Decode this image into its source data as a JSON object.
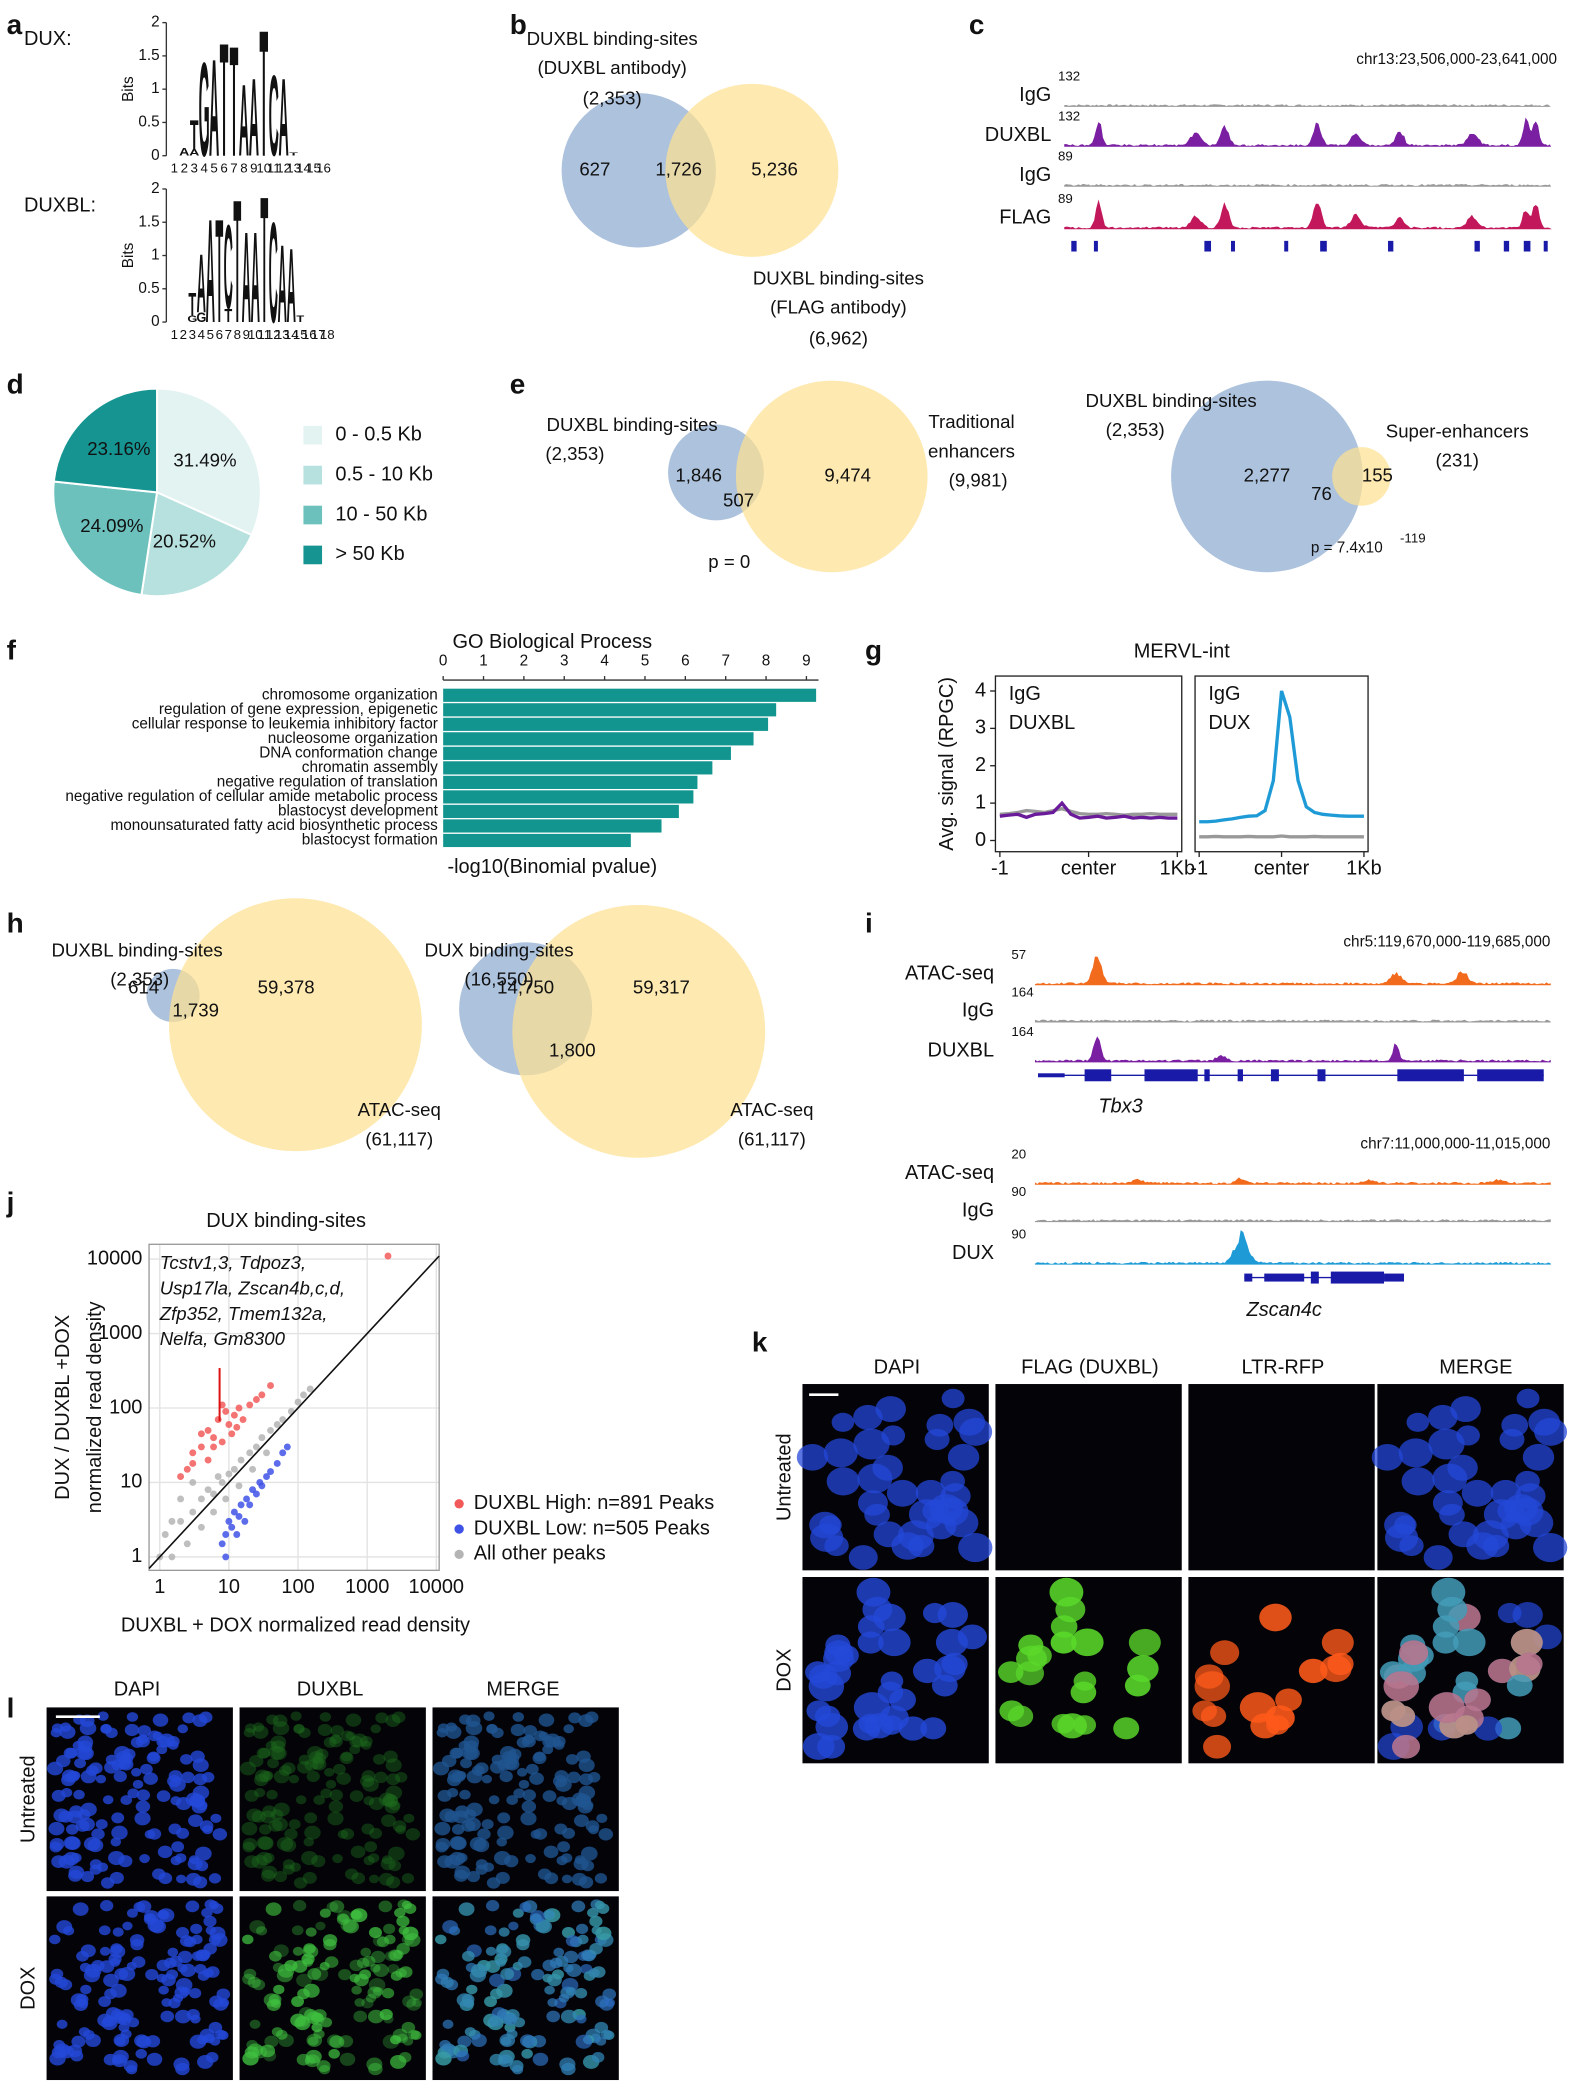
{
  "panels": {
    "a": {
      "label": "a",
      "y_label": "Bits",
      "ylim": [
        0,
        2
      ],
      "yticks": [
        0,
        0.5,
        1,
        1.5,
        2
      ],
      "letter_colors": {
        "A": "#1fa64a",
        "C": "#1f3fbf",
        "G": "#f2a81d",
        "T": "#d6283a"
      },
      "motifs": [
        {
          "name": "DUX:",
          "positions": [
            1,
            2,
            3,
            4,
            5,
            6,
            7,
            8,
            9,
            10,
            11,
            12,
            13,
            14,
            15,
            16
          ],
          "letters": [
            {
              "pos": 2,
              "letter": "A",
              "bits": 0.12
            },
            {
              "pos": 3,
              "letter": "A",
              "bits": 0.1
            },
            {
              "pos": 3,
              "letter": "T",
              "bits": 0.45
            },
            {
              "pos": 4,
              "letter": "G",
              "bits": 1.45
            },
            {
              "pos": 5,
              "letter": "A",
              "bits": 1.5
            },
            {
              "pos": 6,
              "letter": "T",
              "bits": 1.75
            },
            {
              "pos": 7,
              "letter": "T",
              "bits": 1.7
            },
            {
              "pos": 8,
              "letter": "A",
              "bits": 1.1
            },
            {
              "pos": 9,
              "letter": "A",
              "bits": 1.2
            },
            {
              "pos": 10,
              "letter": "T",
              "bits": 1.95
            },
            {
              "pos": 11,
              "letter": "C",
              "bits": 1.25
            },
            {
              "pos": 12,
              "letter": "A",
              "bits": 1.2
            },
            {
              "pos": 13,
              "letter": "T",
              "bits": 0.05
            }
          ]
        },
        {
          "name": "DUXBL:",
          "positions": [
            1,
            2,
            3,
            4,
            5,
            6,
            7,
            8,
            9,
            10,
            11,
            12,
            13,
            14,
            15,
            16,
            17,
            18
          ],
          "letters": [
            {
              "pos": 3,
              "letter": "G",
              "bits": 0.1
            },
            {
              "pos": 3,
              "letter": "T",
              "bits": 0.35
            },
            {
              "pos": 4,
              "letter": "G",
              "bits": 0.15
            },
            {
              "pos": 4,
              "letter": "A",
              "bits": 0.9
            },
            {
              "pos": 5,
              "letter": "A",
              "bits": 1.6
            },
            {
              "pos": 6,
              "letter": "T",
              "bits": 1.6
            },
            {
              "pos": 7,
              "letter": "T",
              "bits": 0.2
            },
            {
              "pos": 7,
              "letter": "C",
              "bits": 1.3
            },
            {
              "pos": 8,
              "letter": "T",
              "bits": 1.9
            },
            {
              "pos": 9,
              "letter": "A",
              "bits": 1.4
            },
            {
              "pos": 10,
              "letter": "A",
              "bits": 1.4
            },
            {
              "pos": 11,
              "letter": "T",
              "bits": 1.95
            },
            {
              "pos": 12,
              "letter": "C",
              "bits": 1.55
            },
            {
              "pos": 13,
              "letter": "A",
              "bits": 1.2
            },
            {
              "pos": 14,
              "letter": "A",
              "bits": 1.15
            },
            {
              "pos": 15,
              "letter": "T",
              "bits": 0.1
            }
          ]
        }
      ]
    },
    "b": {
      "label": "b",
      "left_title": [
        "DUXBL binding-sites",
        "(DUXBL antibody)"
      ],
      "left_count": "(2,353)",
      "right_title": [
        "DUXBL binding-sites",
        "(FLAG antibody)"
      ],
      "right_count": "(6,962)",
      "only_left": "627",
      "both": "1,726",
      "only_right": "5,236"
    },
    "c": {
      "label": "c",
      "region": "chr13:23,506,000-23,641,000",
      "tracks": [
        {
          "name": "IgG",
          "max": "132",
          "color": "#9a9a9a"
        },
        {
          "name": "DUXBL",
          "max": "132",
          "color": "#7a1fa2"
        },
        {
          "name": "IgG",
          "max": "89",
          "color": "#9a9a9a"
        },
        {
          "name": "FLAG",
          "max": "89",
          "color": "#c2185b"
        }
      ]
    },
    "e": {
      "label": "e",
      "venns": [
        {
          "left_title": "DUXBL binding-sites",
          "left_count": "(2,353)",
          "right_title": [
            "Traditional",
            "enhancers"
          ],
          "right_count": "(9,981)",
          "only_left": "1,846",
          "both": "507",
          "only_right": "9,474",
          "p": "p = 0"
        },
        {
          "left_title": "DUXBL binding-sites",
          "left_count": "(2,353)",
          "right_title": [
            "Super-enhancers"
          ],
          "right_count": "(231)",
          "only_left": "2,277",
          "both": "76",
          "only_right": "155",
          "p": "p = 7.4x10",
          "p_exponent": "-119"
        }
      ]
    },
    "h": {
      "label": "h",
      "venns": [
        {
          "left_title": "DUXBL binding-sites",
          "left_count": "(2,353)",
          "right_title": "ATAC-seq",
          "right_count": "(61,117)",
          "only_left": "614",
          "both": "1,739",
          "only_right": "59,378"
        },
        {
          "left_title": "DUX binding-sites",
          "left_count": "(16,550)",
          "right_title": "ATAC-seq",
          "right_count": "(61,117)",
          "only_left": "14,750",
          "both": "1,800",
          "only_right": "59,317"
        }
      ]
    },
    "i": {
      "label": "i",
      "regions": [
        {
          "region": "chr5:119,670,000-119,685,000",
          "tracks": [
            {
              "name": "ATAC-seq",
              "max": "57",
              "color": "#f26b1d"
            },
            {
              "name": "IgG",
              "max": "164",
              "color": "#9a9a9a"
            },
            {
              "name": "DUXBL",
              "max": "164",
              "color": "#7a1fa2"
            }
          ],
          "gene": "Tbx3"
        },
        {
          "region": "chr7:11,000,000-11,015,000",
          "tracks": [
            {
              "name": "ATAC-seq",
              "max": "20",
              "color": "#f26b1d"
            },
            {
              "name": "IgG",
              "max": "90",
              "color": "#9a9a9a"
            },
            {
              "name": "DUX",
              "max": "90",
              "color": "#1e9bd7"
            }
          ],
          "gene": "Zscan4c"
        }
      ]
    },
    "k": {
      "label": "k",
      "columns": [
        {
          "name": "DAPI",
          "color": "#2b2bd0"
        },
        {
          "name": "FLAG (DUXBL)",
          "color": "#22a022"
        },
        {
          "name": "LTR-RFP",
          "color": "#d62020"
        },
        {
          "name": "MERGE",
          "color": "#111111"
        }
      ],
      "rows": [
        "Untreated",
        "DOX"
      ]
    },
    "l": {
      "label": "l",
      "columns": [
        {
          "name": "DAPI",
          "color": "#2b2bd0"
        },
        {
          "name": "DUXBL",
          "color": "#22a022"
        },
        {
          "name": "MERGE",
          "color": "#111111"
        }
      ],
      "rows": [
        "Untreated",
        "DOX"
      ]
    }
  },
  "chart_data": [
    {
      "type": "pie",
      "label": "d",
      "categories": [
        "0 - 0.5 Kb",
        "0.5 - 10 Kb",
        "10 - 50 Kb",
        "> 50 Kb"
      ],
      "values": [
        31.49,
        20.52,
        24.09,
        23.16
      ],
      "value_labels": [
        "31.49%",
        "20.52%",
        "24.09%",
        "23.16%"
      ],
      "colors": [
        "#e3f3f2",
        "#b6e1de",
        "#6cc1bd",
        "#169491"
      ]
    },
    {
      "type": "bar",
      "orientation": "horizontal",
      "label": "f",
      "title": "GO Biological Process",
      "xlabel": "-log10(Binomial pvalue)",
      "xaxis_position": "top",
      "categories": [
        "chromosome organization",
        "regulation of gene expression, epigenetic",
        "cellular response to leukemia inhibitory factor",
        "nucleosome organization",
        "DNA conformation change",
        "chromatin assembly",
        "negative regulation of translation",
        "negative regulation of cellular amide metabolic process",
        "blastocyst development",
        "monounsaturated fatty acid biosynthetic process",
        "blastocyst formation"
      ],
      "values": [
        9.24,
        8.25,
        8.05,
        7.69,
        7.13,
        6.67,
        6.3,
        6.2,
        5.84,
        5.41,
        4.65
      ],
      "color": "#13958f",
      "xlim": [
        0,
        9.3
      ],
      "xticks": [
        0,
        1,
        2,
        3,
        4,
        5,
        6,
        7,
        8,
        9
      ]
    },
    {
      "type": "line",
      "label": "g",
      "title": "MERVL-int",
      "ylabel": "Avg. signal (RPGC)",
      "x": [
        -1,
        -0.9,
        -0.8,
        -0.7,
        -0.6,
        -0.5,
        -0.4,
        -0.3,
        -0.2,
        -0.1,
        0,
        0.1,
        0.2,
        0.3,
        0.4,
        0.5,
        0.6,
        0.7,
        0.8,
        0.9,
        1
      ],
      "xlim": [
        -1.05,
        1.05
      ],
      "xticks": [
        {
          "value": -1,
          "label": "-1"
        },
        {
          "value": 0,
          "label": "center"
        },
        {
          "value": 1,
          "label": "1Kb"
        }
      ],
      "ylim": [
        -0.3,
        4.4
      ],
      "yticks": [
        0,
        1,
        2,
        3,
        4
      ],
      "subplots": [
        {
          "series": [
            {
              "name": "IgG",
              "color": "#999999",
              "values": [
                0.7,
                0.72,
                0.75,
                0.8,
                0.78,
                0.75,
                0.8,
                0.85,
                0.78,
                0.72,
                0.7,
                0.7,
                0.72,
                0.7,
                0.68,
                0.7,
                0.7,
                0.72,
                0.7,
                0.7,
                0.7
              ]
            },
            {
              "name": "DUXBL",
              "color": "#6a1b9a",
              "values": [
                0.65,
                0.68,
                0.7,
                0.62,
                0.7,
                0.72,
                0.75,
                1.0,
                0.7,
                0.6,
                0.62,
                0.65,
                0.6,
                0.62,
                0.65,
                0.6,
                0.62,
                0.6,
                0.62,
                0.6,
                0.6
              ]
            }
          ]
        },
        {
          "series": [
            {
              "name": "IgG",
              "color": "#999999",
              "values": [
                0.1,
                0.1,
                0.11,
                0.1,
                0.1,
                0.1,
                0.11,
                0.1,
                0.1,
                0.1,
                0.12,
                0.1,
                0.1,
                0.1,
                0.11,
                0.1,
                0.1,
                0.1,
                0.1,
                0.1,
                0.1
              ]
            },
            {
              "name": "DUX",
              "color": "#1e9bd7",
              "values": [
                0.5,
                0.5,
                0.52,
                0.55,
                0.58,
                0.62,
                0.65,
                0.66,
                0.8,
                1.6,
                4.0,
                3.3,
                1.6,
                0.9,
                0.75,
                0.7,
                0.68,
                0.66,
                0.65,
                0.65,
                0.65
              ]
            }
          ]
        }
      ]
    },
    {
      "type": "scatter",
      "label": "j",
      "title": "DUX binding-sites",
      "xlabel": "DUXBL + DOX normalized read density",
      "ylabel": [
        "DUX / DUXBL +DOX",
        "normalized read density"
      ],
      "log_scale": true,
      "grid": true,
      "xlim": [
        0.7,
        11000
      ],
      "ylim": [
        0.66,
        15800
      ],
      "xticks": [
        1,
        10,
        100,
        1000,
        10000
      ],
      "yticks": [
        1,
        10,
        100,
        1000,
        10000
      ],
      "annotation": [
        "Tcstv1,3, Tdpoz3,",
        "Usp17la, Zscan4b,c,d,",
        "Zfp352, Tmem132a,",
        "Nelfa, Gm8300"
      ],
      "series": [
        {
          "name": "DUXBL High: n=891 Peaks",
          "color": "#f25a5a",
          "x": [
            2,
            3,
            3,
            4,
            5,
            5,
            6,
            7,
            8,
            9,
            10,
            12,
            14,
            16,
            20,
            25,
            30,
            40,
            2.5,
            4,
            6,
            8,
            11,
            13,
            2000
          ],
          "y": [
            12,
            18,
            25,
            30,
            20,
            50,
            40,
            70,
            35,
            90,
            60,
            80,
            100,
            70,
            110,
            130,
            150,
            200,
            15,
            45,
            30,
            110,
            45,
            55,
            11000
          ]
        },
        {
          "name": "DUXBL Low: n=505 Peaks",
          "color": "#3f52e6",
          "x": [
            8,
            9,
            10,
            11,
            12,
            14,
            15,
            18,
            20,
            22,
            25,
            30,
            35,
            40,
            50,
            60,
            70,
            9,
            13,
            17,
            28
          ],
          "y": [
            1.5,
            2,
            3,
            2.5,
            4,
            3.5,
            5,
            6,
            5,
            8,
            7,
            9,
            12,
            14,
            18,
            25,
            30,
            1,
            2,
            3,
            10
          ]
        },
        {
          "name": "All other peaks",
          "color": "#b4b4b4",
          "x": [
            1,
            1.2,
            1.5,
            2,
            2,
            3,
            3,
            4,
            5,
            6,
            7,
            8,
            10,
            12,
            15,
            20,
            25,
            30,
            40,
            50,
            60,
            80,
            100,
            120,
            150,
            1.5,
            2.5,
            4,
            6,
            9,
            14,
            22,
            35
          ],
          "y": [
            1,
            2,
            3,
            3,
            6,
            4,
            10,
            6,
            8,
            7,
            12,
            10,
            13,
            15,
            20,
            25,
            30,
            40,
            50,
            60,
            70,
            90,
            120,
            150,
            180,
            1,
            1.5,
            2.5,
            4,
            6,
            9,
            15,
            25
          ]
        }
      ]
    }
  ]
}
